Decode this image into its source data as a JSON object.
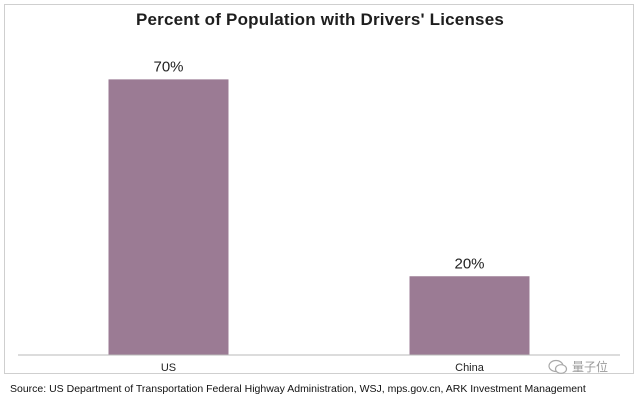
{
  "chart_data": {
    "type": "bar",
    "title": "Percent of Population with Drivers' Licenses",
    "categories": [
      "US",
      "China"
    ],
    "values": [
      70,
      20
    ],
    "data_labels": [
      "70%",
      "20%"
    ],
    "xlabel": "",
    "ylabel": "",
    "ylim": [
      0,
      80
    ],
    "grid": false,
    "bar_color": "#9b7b94",
    "axis_color": "#b9b9b9"
  },
  "source": "Source: US Department of Transportation Federal Highway Administration, WSJ, mps.gov.cn, ARK Investment Management",
  "watermark": {
    "text": "量子位"
  }
}
